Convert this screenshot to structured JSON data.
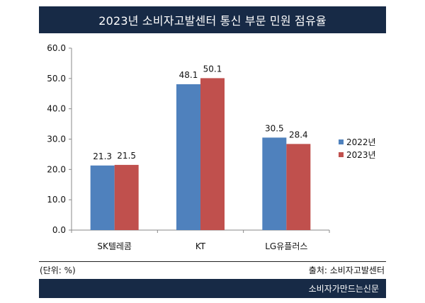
{
  "header": {
    "title": "2023년 소비자고발센터 통신 부문 민원 점유율"
  },
  "chart_data": {
    "type": "bar",
    "title": "2023년 소비자고발센터 통신 부문 민원 점유율",
    "xlabel": "",
    "ylabel": "",
    "categories": [
      "SK텔레콤",
      "KT",
      "LG유플러스"
    ],
    "series": [
      {
        "name": "2022년",
        "color": "#4f81bd",
        "values": [
          21.3,
          48.1,
          30.5
        ]
      },
      {
        "name": "2023년",
        "color": "#c0504d",
        "values": [
          21.5,
          50.1,
          28.4
        ]
      }
    ],
    "ylim": [
      0,
      60
    ],
    "yticks": [
      "0.0",
      "10.0",
      "20.0",
      "30.0",
      "40.0",
      "50.0",
      "60.0"
    ],
    "grid": false,
    "legend": "right",
    "data_labels": true
  },
  "footer": {
    "unit_note": "(단위: %)",
    "source": "출처: 소비자고발센터",
    "brand": "소비자가만드는신문"
  },
  "colors": {
    "banner": "#172a46"
  }
}
